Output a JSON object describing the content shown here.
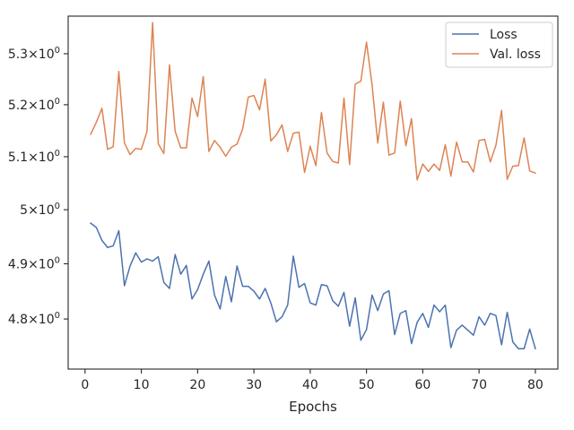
{
  "chart_data": {
    "type": "line",
    "xlabel": "Epochs",
    "ylabel": "",
    "xlim": [
      -3,
      84
    ],
    "ylim": [
      4.711,
      5.375
    ],
    "y_scale": "log",
    "grid": false,
    "legend_position": "top-right",
    "x_ticks": [
      0,
      10,
      20,
      30,
      40,
      50,
      60,
      70,
      80
    ],
    "y_ticks": [
      {
        "value": 4.8,
        "base": "4.8",
        "exp": "0"
      },
      {
        "value": 4.9,
        "base": "4.9",
        "exp": "0"
      },
      {
        "value": 5.0,
        "base": "5",
        "exp": "0"
      },
      {
        "value": 5.1,
        "base": "5.1",
        "exp": "0"
      },
      {
        "value": 5.2,
        "base": "5.2",
        "exp": "0"
      },
      {
        "value": 5.3,
        "base": "5.3",
        "exp": "0"
      }
    ],
    "x": [
      1,
      2,
      3,
      4,
      5,
      6,
      7,
      8,
      9,
      10,
      11,
      12,
      13,
      14,
      15,
      16,
      17,
      18,
      19,
      20,
      21,
      22,
      23,
      24,
      25,
      26,
      27,
      28,
      29,
      30,
      31,
      32,
      33,
      34,
      35,
      36,
      37,
      38,
      39,
      40,
      41,
      42,
      43,
      44,
      45,
      46,
      47,
      48,
      49,
      50,
      51,
      52,
      53,
      54,
      55,
      56,
      57,
      58,
      59,
      60,
      61,
      62,
      63,
      64,
      65,
      66,
      67,
      68,
      69,
      70,
      71,
      72,
      73,
      74,
      75,
      76,
      77,
      78,
      79,
      80
    ],
    "series": [
      {
        "name": "Loss",
        "color": "#4c72b0",
        "values": [
          4.975,
          4.967,
          4.943,
          4.93,
          4.933,
          4.961,
          4.86,
          4.896,
          4.92,
          4.903,
          4.909,
          4.905,
          4.913,
          4.866,
          4.855,
          4.917,
          4.881,
          4.897,
          4.836,
          4.853,
          4.881,
          4.905,
          4.843,
          4.818,
          4.877,
          4.831,
          4.896,
          4.859,
          4.859,
          4.85,
          4.836,
          4.855,
          4.829,
          4.795,
          4.804,
          4.825,
          4.914,
          4.857,
          4.864,
          4.829,
          4.825,
          4.862,
          4.86,
          4.833,
          4.823,
          4.848,
          4.787,
          4.838,
          4.762,
          4.781,
          4.843,
          4.815,
          4.845,
          4.851,
          4.772,
          4.81,
          4.815,
          4.756,
          4.794,
          4.81,
          4.785,
          4.825,
          4.813,
          4.825,
          4.749,
          4.78,
          4.789,
          4.78,
          4.771,
          4.804,
          4.789,
          4.81,
          4.806,
          4.754,
          4.812,
          4.759,
          4.747,
          4.747,
          4.782,
          4.747
        ]
      },
      {
        "name": "Val. loss",
        "color": "#dd8452",
        "values": [
          5.143,
          5.166,
          5.193,
          5.114,
          5.119,
          5.265,
          5.126,
          5.104,
          5.116,
          5.114,
          5.148,
          5.362,
          5.125,
          5.106,
          5.278,
          5.149,
          5.117,
          5.117,
          5.213,
          5.177,
          5.255,
          5.11,
          5.131,
          5.118,
          5.101,
          5.118,
          5.124,
          5.153,
          5.215,
          5.218,
          5.19,
          5.25,
          5.13,
          5.142,
          5.161,
          5.11,
          5.145,
          5.147,
          5.07,
          5.12,
          5.083,
          5.185,
          5.107,
          5.091,
          5.088,
          5.213,
          5.085,
          5.24,
          5.246,
          5.323,
          5.238,
          5.126,
          5.205,
          5.103,
          5.107,
          5.207,
          5.121,
          5.173,
          5.056,
          5.086,
          5.072,
          5.086,
          5.074,
          5.123,
          5.063,
          5.128,
          5.09,
          5.09,
          5.071,
          5.131,
          5.133,
          5.09,
          5.122,
          5.189,
          5.057,
          5.082,
          5.083,
          5.136,
          5.073,
          5.069
        ]
      }
    ]
  }
}
